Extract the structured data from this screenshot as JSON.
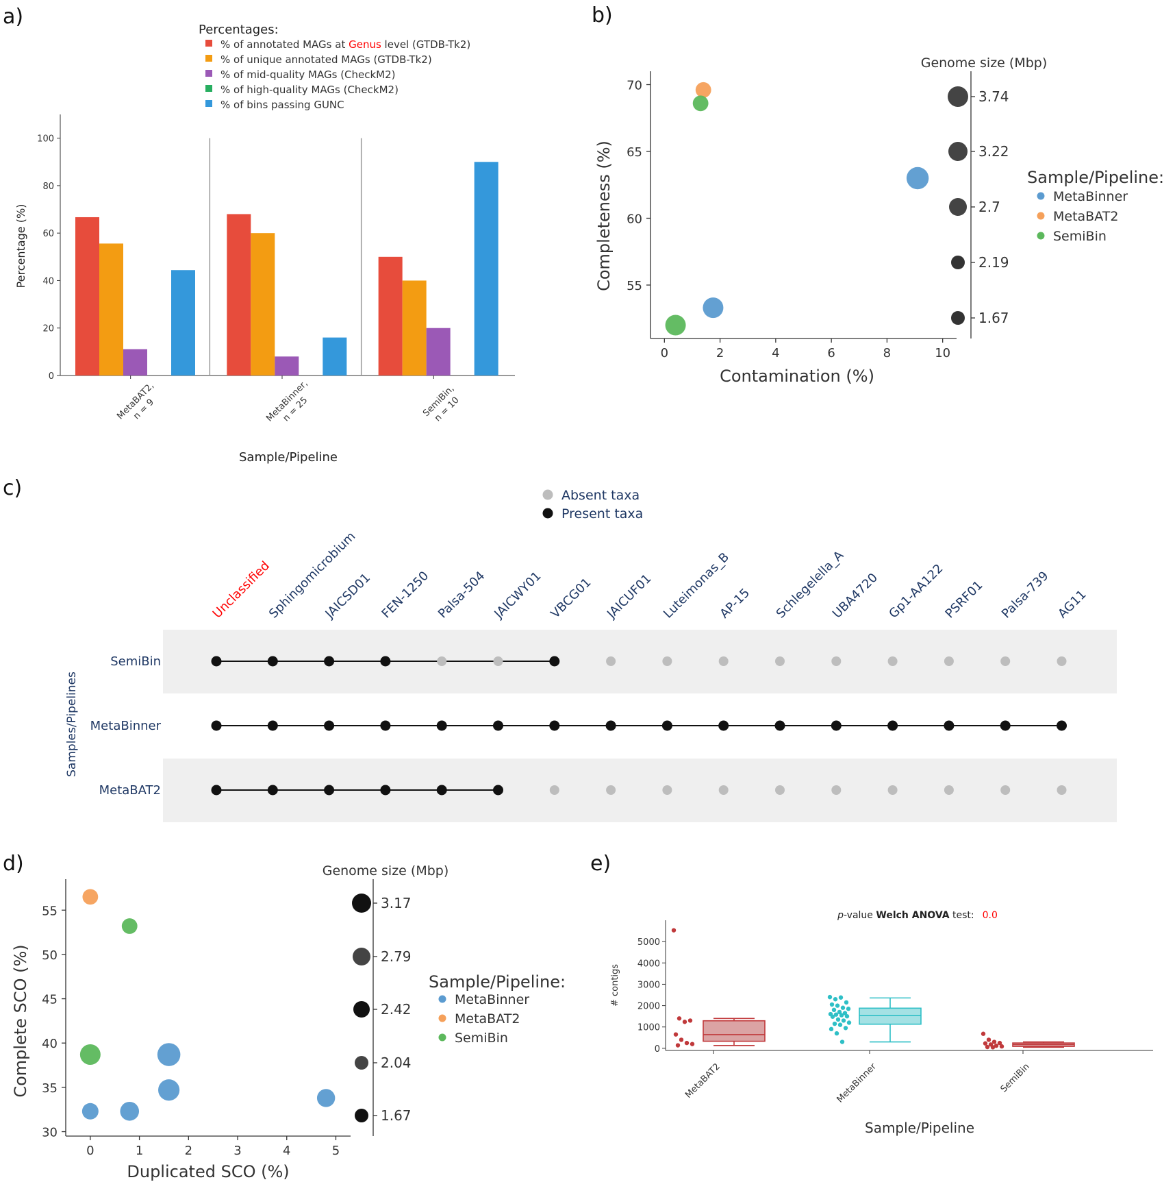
{
  "panels": {
    "a": "a)",
    "b": "b)",
    "c": "c)",
    "d": "d)",
    "e": "e)"
  },
  "chart_data": [
    {
      "id": "a",
      "type": "bar",
      "xlabel": "Sample/Pipeline",
      "ylabel": "Percentage (%)",
      "ylim": [
        0,
        110
      ],
      "yticks": [
        0,
        20,
        40,
        60,
        80,
        100
      ],
      "legend_title": "Percentages:",
      "legend_line1": {
        "pre": "% of annotated MAGs at ",
        "hl": "Genus",
        "post": " level (GTDB-Tk2)"
      },
      "categories": [
        {
          "line1": "MetaBAT2,",
          "line2": "n = 9"
        },
        {
          "line1": "MetaBinner,",
          "line2": "n = 25"
        },
        {
          "line1": "SemiBin,",
          "line2": "n = 10"
        }
      ],
      "series": [
        {
          "name": "% of annotated MAGs at Genus level (GTDB-Tk2)",
          "color": "#e74c3c",
          "values": [
            66.7,
            68,
            50
          ]
        },
        {
          "name": "% of unique annotated MAGs (GTDB-Tk2)",
          "color": "#f39c12",
          "values": [
            55.6,
            60,
            40
          ]
        },
        {
          "name": "% of mid-quality MAGs (CheckM2)",
          "color": "#9b59b6",
          "values": [
            11.1,
            8,
            20
          ]
        },
        {
          "name": "% of high-quality MAGs (CheckM2)",
          "color": "#27ae60",
          "values": [
            0,
            0,
            0
          ]
        },
        {
          "name": "% of bins passing GUNC",
          "color": "#3498db",
          "values": [
            44.4,
            16,
            90
          ]
        }
      ],
      "highlight_color": "#ff0000"
    },
    {
      "id": "b",
      "type": "scatter",
      "xlabel": "Contamination (%)",
      "ylabel": "Completeness (%)",
      "xlim": [
        -0.5,
        10.5
      ],
      "ylim": [
        51,
        71
      ],
      "xticks": [
        0,
        2,
        4,
        6,
        8,
        10
      ],
      "yticks": [
        55,
        60,
        65,
        70
      ],
      "size_title": "Genome size (Mbp)",
      "size_labels": [
        "3.74",
        "3.22",
        "2.7",
        "2.19",
        "1.67"
      ],
      "legend_title": "Sample/Pipeline:",
      "series": [
        {
          "name": "MetaBinner",
          "color": "#5b9bd0",
          "points": [
            {
              "x": 9.1,
              "y": 63,
              "size": 2.7
            },
            {
              "x": 1.75,
              "y": 53.3,
              "size": 2.5
            }
          ]
        },
        {
          "name": "MetaBAT2",
          "color": "#f5a05a",
          "points": [
            {
              "x": 1.4,
              "y": 69.6,
              "size": 1.9
            }
          ]
        },
        {
          "name": "SemiBin",
          "color": "#5cb85c",
          "points": [
            {
              "x": 1.3,
              "y": 68.6,
              "size": 1.9
            },
            {
              "x": 0.4,
              "y": 52,
              "size": 2.5
            }
          ]
        }
      ]
    },
    {
      "id": "c",
      "type": "upset",
      "legend": [
        "Absent taxa",
        "Present taxa"
      ],
      "ylabel": "Samples/Pipelines",
      "taxa": [
        "Unclassified",
        "Sphingomicrobium",
        "JAICSD01",
        "FEN-1250",
        "Palsa-504",
        "JAICWY01",
        "VBCG01",
        "JAICUF01",
        "Luteimonas_B",
        "AP-15",
        "Schlegelella_A",
        "UBA4720",
        "Gp1-AA122",
        "PSRF01",
        "Palsa-739",
        "AG11"
      ],
      "rows": [
        {
          "name": "SemiBin",
          "present": [
            1,
            1,
            1,
            1,
            0,
            0,
            1,
            0,
            0,
            0,
            0,
            0,
            0,
            0,
            0,
            0
          ]
        },
        {
          "name": "MetaBinner",
          "present": [
            1,
            1,
            1,
            1,
            1,
            1,
            1,
            1,
            1,
            1,
            1,
            1,
            1,
            1,
            1,
            1
          ]
        },
        {
          "name": "MetaBAT2",
          "present": [
            1,
            1,
            1,
            1,
            1,
            1,
            0,
            0,
            0,
            0,
            0,
            0,
            0,
            0,
            0,
            0
          ]
        }
      ],
      "highlight_color": "#ff0000",
      "label_color": "#1f3864"
    },
    {
      "id": "d",
      "type": "scatter",
      "xlabel": "Duplicated SCO (%)",
      "ylabel": "Complete SCO (%)",
      "xlim": [
        -0.5,
        5.3
      ],
      "ylim": [
        29.5,
        58.5
      ],
      "xticks": [
        0,
        1,
        2,
        3,
        4,
        5
      ],
      "yticks": [
        30,
        35,
        40,
        45,
        50,
        55
      ],
      "size_title": "Genome size (Mbp)",
      "size_labels": [
        "3.17",
        "2.79",
        "2.42",
        "2.04",
        "1.67"
      ],
      "legend_title": "Sample/Pipeline:",
      "series": [
        {
          "name": "MetaBinner",
          "color": "#5b9bd0",
          "points": [
            {
              "x": 1.6,
              "y": 38.7,
              "size": 2.8
            },
            {
              "x": 1.6,
              "y": 34.7,
              "size": 2.6
            },
            {
              "x": 4.8,
              "y": 33.8,
              "size": 2.2
            },
            {
              "x": 0,
              "y": 32.3,
              "size": 2.0
            },
            {
              "x": 0.8,
              "y": 32.3,
              "size": 2.3
            }
          ]
        },
        {
          "name": "MetaBAT2",
          "color": "#f5a05a",
          "points": [
            {
              "x": 0,
              "y": 56.5,
              "size": 1.9
            }
          ]
        },
        {
          "name": "SemiBin",
          "color": "#5cb85c",
          "points": [
            {
              "x": 0.8,
              "y": 53.2,
              "size": 1.9
            },
            {
              "x": 0,
              "y": 38.7,
              "size": 2.5
            }
          ]
        }
      ]
    },
    {
      "id": "e",
      "type": "box",
      "xlabel": "Sample/Pipeline",
      "ylabel": "# contigs",
      "ylim": [
        -100,
        6000
      ],
      "yticks": [
        0,
        1000,
        2000,
        3000,
        4000,
        5000
      ],
      "annotation": {
        "pre": "p",
        "mid": "-value ",
        "bold": "Welch ANOVA",
        "post": " test:",
        "value": "0.0"
      },
      "categories": [
        "MetaBAT2",
        "MetaBinner",
        "SemiBin"
      ],
      "boxes": [
        {
          "name": "MetaBAT2",
          "color": "#c0393b",
          "fill": "#dba3a4",
          "min": 130,
          "q1": 330,
          "median": 640,
          "q3": 1290,
          "max": 1400,
          "points": [
            5530,
            1400,
            1240,
            1300,
            650,
            400,
            250,
            200,
            140
          ]
        },
        {
          "name": "MetaBinner",
          "color": "#2ebfc6",
          "fill": "#a4e1e4",
          "min": 300,
          "q1": 1130,
          "median": 1530,
          "q3": 1880,
          "max": 2360,
          "points": [
            2400,
            2300,
            2380,
            2150,
            2050,
            2000,
            1900,
            1850,
            1800,
            1700,
            1650,
            1600,
            1580,
            1550,
            1500,
            1480,
            1350,
            1300,
            1200,
            1150,
            1100,
            950,
            900,
            700,
            300
          ]
        },
        {
          "name": "SemiBin",
          "color": "#c0393b",
          "fill": "#dba3a4",
          "min": 50,
          "q1": 90,
          "median": 180,
          "q3": 250,
          "max": 300,
          "points": [
            680,
            400,
            300,
            250,
            230,
            180,
            120,
            90,
            60,
            50
          ]
        }
      ]
    }
  ]
}
